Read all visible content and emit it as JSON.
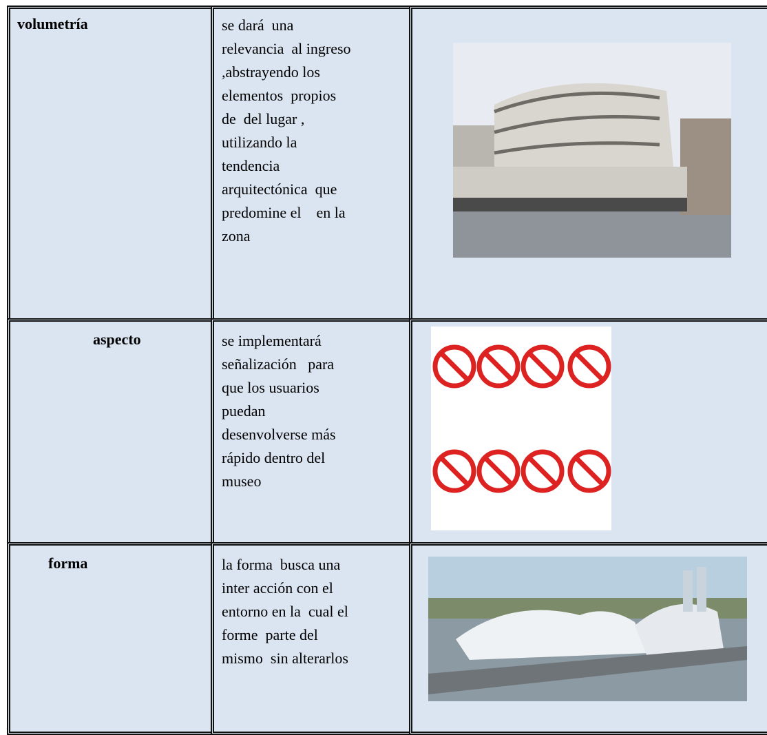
{
  "table": {
    "rows": [
      {
        "label": "volumetría",
        "lines": [
          "se dará  una",
          "relevancia  al ingreso",
          ",abstrayendo los",
          "elementos  propios",
          "de  del lugar ,",
          "utilizando la",
          "tendencia",
          "arquitectónica  que",
          "predomine el    en la",
          "zona"
        ]
      },
      {
        "label": "aspecto",
        "lines": [
          "se implementará",
          "señalización   para",
          "que los usuarios",
          "puedan",
          "desenvolverse más",
          "rápido dentro del",
          "museo"
        ]
      },
      {
        "label": "forma",
        "lines": [
          "la forma  busca una",
          "inter acción con el",
          "entorno en la  cual el",
          "forme  parte del",
          "mismo  sin alterarlos"
        ]
      }
    ]
  }
}
